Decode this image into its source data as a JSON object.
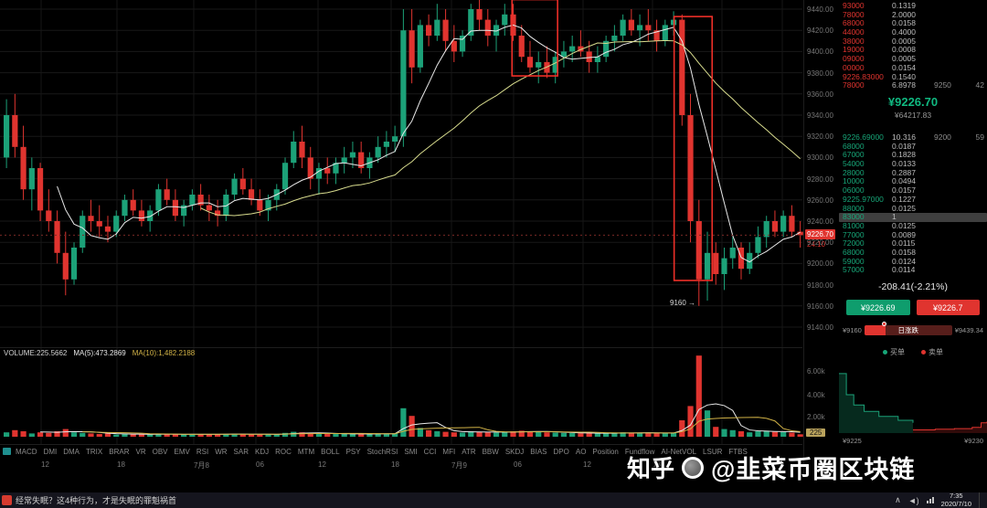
{
  "chart": {
    "volume_header": {
      "volume_label": "VOLUME:225.5662",
      "ma5_label": "MA(5):473.2869",
      "ma10_label": "MA(10):1,482.2188"
    },
    "price_axis_ticks": [
      "9440.00",
      "9420.00",
      "9400.00",
      "9380.00",
      "9360.00",
      "9340.00",
      "9320.00",
      "9300.00",
      "9280.00",
      "9260.00",
      "9240.00",
      "9220.00",
      "9200.00",
      "9180.00",
      "9160.00",
      "9140.00"
    ],
    "last_price": "9226.70",
    "countdown": "24:10",
    "volume_axis_ticks": [
      "6.00k",
      "4.00k",
      "2.00k"
    ],
    "current_volume": "225",
    "time_axis": [
      "12",
      "18",
      "7月8",
      "06",
      "12",
      "18",
      "7月9",
      "06",
      "12",
      "18"
    ],
    "annotation_label": "9160 →"
  },
  "chart_data": {
    "type": "candlestick",
    "title": "",
    "price_range": [
      9140,
      9440
    ],
    "grid_step": 20,
    "volume_grid": [
      2000,
      4000,
      6000
    ],
    "candles": [
      [
        9300,
        9355,
        9290,
        9340,
        400
      ],
      [
        9340,
        9360,
        9300,
        9310,
        600
      ],
      [
        9310,
        9330,
        9260,
        9270,
        500
      ],
      [
        9270,
        9300,
        9250,
        9290,
        300
      ],
      [
        9290,
        9295,
        9240,
        9250,
        400
      ],
      [
        9250,
        9270,
        9230,
        9240,
        350
      ],
      [
        9240,
        9250,
        9200,
        9210,
        500
      ],
      [
        9210,
        9230,
        9170,
        9185,
        700
      ],
      [
        9185,
        9220,
        9180,
        9215,
        400
      ],
      [
        9215,
        9250,
        9210,
        9245,
        350
      ],
      [
        9245,
        9260,
        9230,
        9240,
        300
      ],
      [
        9240,
        9255,
        9225,
        9235,
        250
      ],
      [
        9235,
        9245,
        9220,
        9230,
        300
      ],
      [
        9230,
        9250,
        9225,
        9245,
        200
      ],
      [
        9245,
        9265,
        9240,
        9260,
        250
      ],
      [
        9260,
        9270,
        9245,
        9250,
        220
      ],
      [
        9250,
        9260,
        9235,
        9240,
        240
      ],
      [
        9240,
        9255,
        9230,
        9250,
        200
      ],
      [
        9250,
        9275,
        9245,
        9270,
        260
      ],
      [
        9270,
        9280,
        9255,
        9260,
        230
      ],
      [
        9260,
        9270,
        9240,
        9245,
        210
      ],
      [
        9245,
        9260,
        9235,
        9255,
        200
      ],
      [
        9255,
        9270,
        9250,
        9265,
        220
      ],
      [
        9265,
        9275,
        9250,
        9255,
        240
      ],
      [
        9255,
        9265,
        9240,
        9250,
        230
      ],
      [
        9250,
        9260,
        9235,
        9245,
        210
      ],
      [
        9245,
        9270,
        9240,
        9265,
        250
      ],
      [
        9265,
        9285,
        9260,
        9280,
        260
      ],
      [
        9280,
        9290,
        9265,
        9270,
        230
      ],
      [
        9270,
        9280,
        9255,
        9260,
        220
      ],
      [
        9260,
        9270,
        9245,
        9250,
        200
      ],
      [
        9250,
        9265,
        9240,
        9260,
        210
      ],
      [
        9260,
        9275,
        9250,
        9270,
        230
      ],
      [
        9270,
        9300,
        9265,
        9295,
        350
      ],
      [
        9295,
        9325,
        9290,
        9315,
        450
      ],
      [
        9315,
        9330,
        9290,
        9300,
        400
      ],
      [
        9300,
        9310,
        9270,
        9280,
        300
      ],
      [
        9280,
        9295,
        9265,
        9290,
        280
      ],
      [
        9290,
        9300,
        9275,
        9285,
        260
      ],
      [
        9285,
        9300,
        9275,
        9295,
        250
      ],
      [
        9295,
        9310,
        9285,
        9300,
        260
      ],
      [
        9300,
        9315,
        9290,
        9305,
        270
      ],
      [
        9305,
        9315,
        9285,
        9290,
        250
      ],
      [
        9290,
        9305,
        9280,
        9300,
        240
      ],
      [
        9300,
        9320,
        9295,
        9310,
        300
      ],
      [
        9310,
        9325,
        9300,
        9315,
        280
      ],
      [
        9315,
        9330,
        9305,
        9320,
        300
      ],
      [
        9320,
        9440,
        9310,
        9420,
        2600
      ],
      [
        9420,
        9440,
        9370,
        9385,
        1900
      ],
      [
        9385,
        9430,
        9380,
        9425,
        800
      ],
      [
        9425,
        9435,
        9405,
        9415,
        600
      ],
      [
        9415,
        9445,
        9410,
        9430,
        500
      ],
      [
        9430,
        9440,
        9400,
        9410,
        450
      ],
      [
        9410,
        9425,
        9390,
        9400,
        400
      ],
      [
        9400,
        9420,
        9395,
        9415,
        380
      ],
      [
        9415,
        9445,
        9410,
        9440,
        500
      ],
      [
        9440,
        9450,
        9420,
        9430,
        450
      ],
      [
        9430,
        9440,
        9405,
        9415,
        400
      ],
      [
        9415,
        9430,
        9400,
        9425,
        380
      ],
      [
        9425,
        9445,
        9415,
        9435,
        420
      ],
      [
        9435,
        9445,
        9410,
        9415,
        500
      ],
      [
        9415,
        9425,
        9390,
        9395,
        550
      ],
      [
        9395,
        9410,
        9380,
        9385,
        500
      ],
      [
        9385,
        9400,
        9370,
        9390,
        450
      ],
      [
        9390,
        9405,
        9375,
        9380,
        400
      ],
      [
        9380,
        9400,
        9370,
        9395,
        380
      ],
      [
        9395,
        9410,
        9385,
        9400,
        350
      ],
      [
        9400,
        9415,
        9390,
        9405,
        330
      ],
      [
        9405,
        9420,
        9395,
        9400,
        320
      ],
      [
        9400,
        9410,
        9380,
        9390,
        340
      ],
      [
        9390,
        9405,
        9380,
        9395,
        300
      ],
      [
        9395,
        9415,
        9390,
        9410,
        320
      ],
      [
        9410,
        9425,
        9400,
        9415,
        340
      ],
      [
        9415,
        9435,
        9410,
        9430,
        400
      ],
      [
        9430,
        9440,
        9415,
        9420,
        380
      ],
      [
        9420,
        9435,
        9405,
        9425,
        350
      ],
      [
        9425,
        9440,
        9410,
        9420,
        330
      ],
      [
        9420,
        9430,
        9400,
        9410,
        320
      ],
      [
        9410,
        9430,
        9405,
        9425,
        340
      ],
      [
        9425,
        9438,
        9415,
        9430,
        360
      ],
      [
        9430,
        9435,
        9330,
        9340,
        1500
      ],
      [
        9340,
        9360,
        9220,
        9240,
        2800
      ],
      [
        9240,
        9260,
        9160,
        9185,
        7400
      ],
      [
        9185,
        9230,
        9165,
        9210,
        2400
      ],
      [
        9210,
        9220,
        9180,
        9190,
        900
      ],
      [
        9190,
        9215,
        9175,
        9205,
        700
      ],
      [
        9205,
        9225,
        9195,
        9215,
        600
      ],
      [
        9215,
        9220,
        9185,
        9195,
        500
      ],
      [
        9195,
        9220,
        9190,
        9210,
        400
      ],
      [
        9210,
        9235,
        9205,
        9225,
        500
      ],
      [
        9225,
        9245,
        9215,
        9240,
        550
      ],
      [
        9240,
        9250,
        9225,
        9230,
        450
      ],
      [
        9230,
        9250,
        9225,
        9245,
        420
      ],
      [
        9245,
        9255,
        9225,
        9230,
        380
      ],
      [
        9230,
        9240,
        9215,
        9226.7,
        225
      ]
    ],
    "annotations": [
      {
        "type": "box",
        "start_index": 60.2,
        "end_index": 65.6,
        "price_top": 9449,
        "price_bottom": 9377
      },
      {
        "type": "box",
        "start_index": 79.4,
        "end_index": 83.9,
        "price_top": 9433,
        "price_bottom": 9184
      }
    ],
    "depth": {
      "bids": [
        [
          0,
          0.93
        ],
        [
          0.05,
          0.6
        ],
        [
          0.1,
          0.44
        ],
        [
          0.17,
          0.34
        ],
        [
          0.27,
          0.26
        ],
        [
          0.4,
          0.2
        ],
        [
          0.5,
          0.16
        ]
      ],
      "asks": [
        [
          0.5,
          0.05
        ],
        [
          0.65,
          0.06
        ],
        [
          0.78,
          0.07
        ],
        [
          0.9,
          0.09
        ],
        [
          0.96,
          0.16
        ],
        [
          1,
          0.18
        ]
      ]
    }
  },
  "toolbar": {
    "items": [
      "MACD",
      "DMI",
      "DMA",
      "TRIX",
      "BRAR",
      "VR",
      "OBV",
      "EMV",
      "RSI",
      "WR",
      "SAR",
      "KDJ",
      "ROC",
      "MTM",
      "BOLL",
      "PSY",
      "StochRSI",
      "SMI",
      "CCI",
      "MFI",
      "ATR",
      "BBW",
      "SKDJ",
      "BIAS",
      "DPO",
      "AO",
      "Position",
      "Fundflow",
      "AI-NetVOL",
      "LSUR",
      "FTBS"
    ]
  },
  "orderbook": {
    "asks": [
      {
        "price": "93000",
        "amount": "0.1319"
      },
      {
        "price": "78000",
        "amount": "2.0000"
      },
      {
        "price": "68000",
        "amount": "0.0158"
      },
      {
        "price": "44000",
        "amount": "0.4000"
      },
      {
        "price": "38000",
        "amount": "0.0005"
      },
      {
        "price": "19000",
        "amount": "0.0008"
      },
      {
        "price": "09000",
        "amount": "0.0005"
      },
      {
        "price": "00000",
        "amount": "0.0154"
      },
      {
        "price": "9226.83000",
        "amount": "0.1540"
      },
      {
        "price": "78000",
        "amount": "6.8978",
        "wall_price": "9250",
        "wall_count": "42"
      }
    ],
    "last_price": "¥9226.70",
    "last_price_cny": "¥64217.83",
    "bids": [
      {
        "price": "9226.69000",
        "amount": "10.316",
        "wall_price": "9200",
        "wall_count": "59"
      },
      {
        "price": "68000",
        "amount": "0.0187"
      },
      {
        "price": "67000",
        "amount": "0.1828"
      },
      {
        "price": "54000",
        "amount": "0.0133"
      },
      {
        "price": "28000",
        "amount": "0.2887"
      },
      {
        "price": "10000",
        "amount": "0.0494"
      },
      {
        "price": "06000",
        "amount": "0.0157"
      },
      {
        "price": "9225.97000",
        "amount": "0.1227"
      },
      {
        "price": "88000",
        "amount": "0.0125"
      },
      {
        "price": "83000",
        "amount": "1",
        "highlighted": true
      },
      {
        "price": "81000",
        "amount": "0.0125"
      },
      {
        "price": "77000",
        "amount": "0.0089"
      },
      {
        "price": "72000",
        "amount": "0.0115"
      },
      {
        "price": "68000",
        "amount": "0.0158"
      },
      {
        "price": "59000",
        "amount": "0.0124"
      },
      {
        "price": "57000",
        "amount": "0.0114"
      }
    ]
  },
  "summary": {
    "change": "-208.41(-2.21%)",
    "bid_button": "¥9226.69",
    "ask_button": "¥9226.7",
    "range_low": "¥9160",
    "range_label": "日涨跌",
    "range_high": "¥9439.34",
    "legend_buy": "买单",
    "legend_sell": "卖单",
    "depth_low": "¥9225",
    "depth_high": "¥9230"
  },
  "watermark": {
    "brand": "知乎",
    "handle": "@韭菜币圈区块链"
  },
  "taskbar": {
    "ticker": "经常失眠？这4种行为，才是失眠的罪魁祸首",
    "time": "7:35",
    "date": "2020/7/10"
  },
  "colors": {
    "up": "#1ca178",
    "down": "#e0342f",
    "ma_short": "#e9e9e9",
    "ma_long": "#d8dc8e",
    "vol_ma5": "#e9e9e9",
    "vol_ma10": "#d2b347",
    "annotation": "#ee2f28",
    "last_price_badge": "#e0342f",
    "volume_badge": "#b9a25c"
  }
}
